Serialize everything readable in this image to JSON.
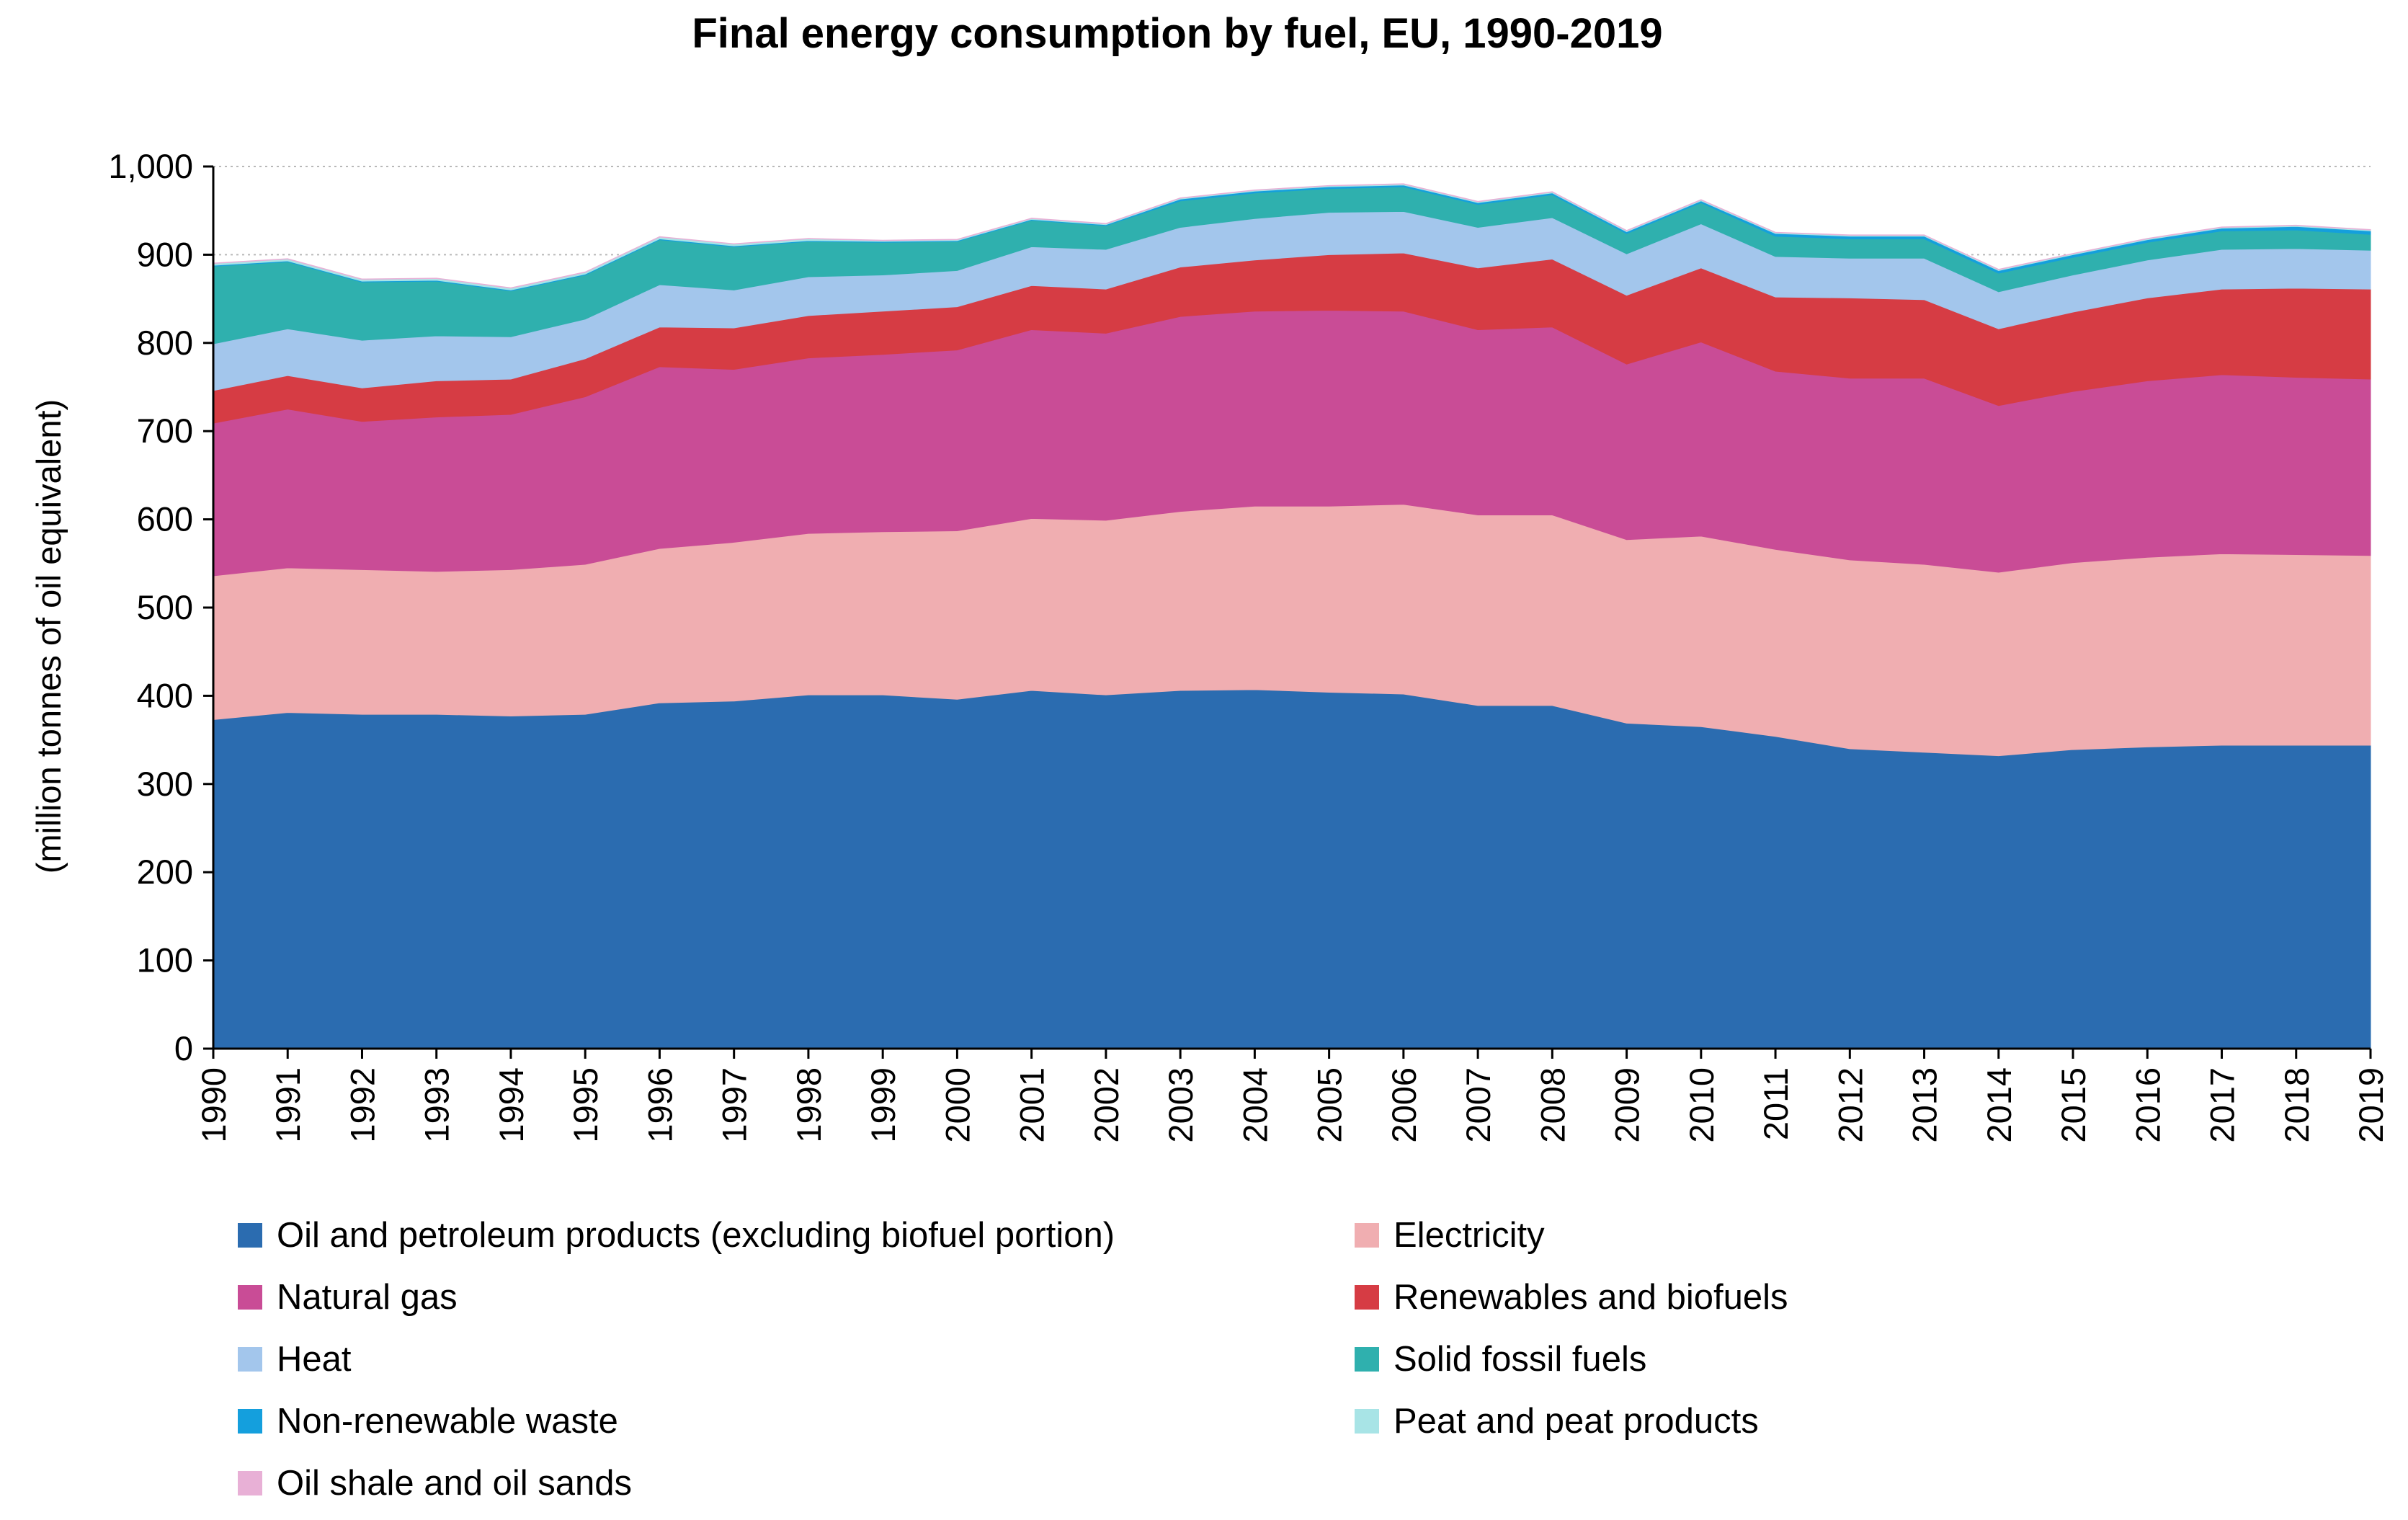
{
  "chart_data": {
    "type": "area",
    "stacked": true,
    "title": "Final energy consumption by fuel, EU, 1990-2019",
    "xlabel": "",
    "ylabel": "(million tonnes of oil equivalent)",
    "ylim": [
      0,
      1000
    ],
    "yticks": [
      0,
      100,
      200,
      300,
      400,
      500,
      600,
      700,
      800,
      900,
      1000
    ],
    "ytick_labels": [
      "0",
      "100",
      "200",
      "300",
      "400",
      "500",
      "600",
      "700",
      "800",
      "900",
      "1,000"
    ],
    "grid": "horizontal dotted",
    "legend_position": "bottom",
    "categories": [
      "1990",
      "1991",
      "1992",
      "1993",
      "1994",
      "1995",
      "1996",
      "1997",
      "1998",
      "1999",
      "2000",
      "2001",
      "2002",
      "2003",
      "2004",
      "2005",
      "2006",
      "2007",
      "2008",
      "2009",
      "2010",
      "2011",
      "2012",
      "2013",
      "2014",
      "2015",
      "2016",
      "2017",
      "2018",
      "2019"
    ],
    "series": [
      {
        "name": "Oil and petroleum products (excluding biofuel portion)",
        "color": "#2b6cb0",
        "values": [
          373,
          381,
          379,
          379,
          377,
          379,
          392,
          394,
          401,
          401,
          396,
          406,
          401,
          406,
          407,
          404,
          402,
          389,
          389,
          369,
          365,
          354,
          340,
          336,
          332,
          339,
          342,
          344,
          344,
          344
        ]
      },
      {
        "name": "Electricity",
        "color": "#f0aeb1",
        "values": [
          163,
          164,
          164,
          162,
          166,
          170,
          175,
          180,
          183,
          185,
          191,
          195,
          198,
          203,
          208,
          211,
          215,
          216,
          216,
          208,
          216,
          212,
          214,
          213,
          208,
          212,
          215,
          217,
          216,
          215
        ]
      },
      {
        "name": "Natural gas",
        "color": "#c94c96",
        "values": [
          173,
          180,
          168,
          175,
          176,
          190,
          206,
          196,
          199,
          201,
          205,
          214,
          212,
          221,
          221,
          222,
          219,
          210,
          213,
          199,
          220,
          202,
          206,
          211,
          189,
          194,
          200,
          203,
          201,
          200
        ]
      },
      {
        "name": "Renewables and biofuels",
        "color": "#d63c44",
        "values": [
          37,
          38,
          38,
          41,
          40,
          43,
          45,
          47,
          48,
          49,
          49,
          50,
          50,
          56,
          58,
          63,
          66,
          70,
          77,
          78,
          84,
          84,
          91,
          89,
          87,
          90,
          94,
          97,
          101,
          102
        ]
      },
      {
        "name": "Heat",
        "color": "#a3c6ec",
        "values": [
          53,
          53,
          54,
          51,
          48,
          45,
          48,
          43,
          44,
          41,
          41,
          44,
          45,
          45,
          47,
          48,
          47,
          46,
          47,
          47,
          50,
          46,
          45,
          47,
          42,
          42,
          43,
          45,
          45,
          44
        ]
      },
      {
        "name": "Solid fossil fuels",
        "color": "#2fb0ae",
        "values": [
          88,
          76,
          66,
          62,
          52,
          50,
          51,
          49,
          40,
          37,
          33,
          30,
          27,
          30,
          29,
          27,
          28,
          26,
          26,
          23,
          24,
          23,
          22,
          22,
          21,
          20,
          20,
          21,
          21,
          18
        ]
      },
      {
        "name": "Non-renewable waste",
        "color": "#149fdd",
        "values": [
          1,
          1,
          1,
          1,
          1,
          1,
          1,
          1,
          1,
          1,
          1,
          1,
          1,
          2,
          2,
          2,
          2,
          2,
          2,
          2,
          2,
          3,
          3,
          3,
          3,
          3,
          3,
          3,
          4,
          4
        ]
      },
      {
        "name": "Peat and peat products",
        "color": "#a8e4e6",
        "values": [
          2,
          2,
          2,
          2,
          2,
          2,
          2,
          2,
          2,
          1,
          1,
          1,
          1,
          1,
          1,
          1,
          1,
          1,
          1,
          1,
          1,
          1,
          1,
          1,
          1,
          1,
          1,
          1,
          1,
          1
        ]
      },
      {
        "name": "Oil shale and oil sands",
        "color": "#e8b0d6",
        "values": [
          0.5,
          0.5,
          0.5,
          0.5,
          0.5,
          0.5,
          0.5,
          0.5,
          0.5,
          0.5,
          0.5,
          0.5,
          0.5,
          0.5,
          0.5,
          0.5,
          0.5,
          0.5,
          0.5,
          0.5,
          0.5,
          0.5,
          0.5,
          0.5,
          0.5,
          0.5,
          0.5,
          0.5,
          0.5,
          0.5
        ]
      }
    ]
  }
}
